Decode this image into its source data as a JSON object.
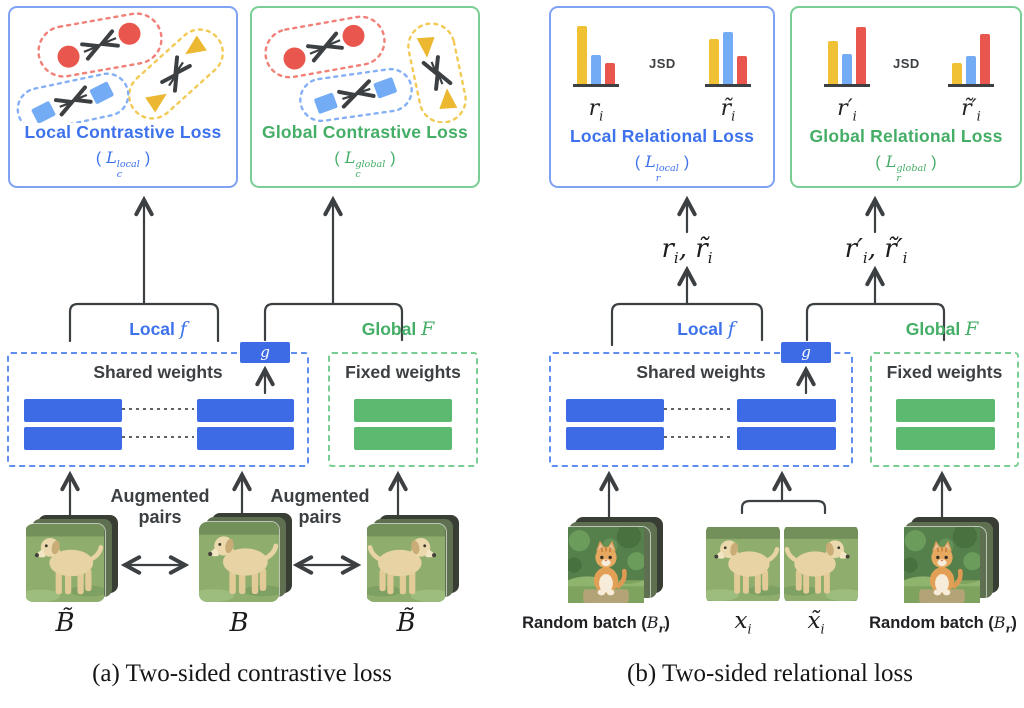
{
  "palette": {
    "blue_text": "#3D72EC",
    "blue_bar": "#3D6BE5",
    "blue_light": "#74ABF5",
    "blue_border": "#7FA3F2",
    "blue_dashed": "#5F8EF0",
    "green_text": "#45AE66",
    "green_bar": "#5BBA70",
    "green_border": "#79CE94",
    "red": "#E9564E",
    "yellow": "#ECB831",
    "hist_yellow": "#F0C135",
    "dark": "#3C4043"
  },
  "panel_a": {
    "local_box": {
      "title": "Local Contrastive Loss",
      "formula": {
        "open": "(",
        "base": "L",
        "sup": "local",
        "sub": "c",
        "close": ")"
      }
    },
    "global_box": {
      "title": "Global Contrastive Loss",
      "formula": {
        "open": "(",
        "base": "L",
        "sup": "global",
        "sub": "c",
        "close": ")"
      }
    },
    "local_encoder": {
      "prefix": "Local ",
      "symbol": "f"
    },
    "global_encoder": {
      "prefix": "Global ",
      "symbol": "F"
    },
    "g_label": "g",
    "shared_weights": "Shared weights",
    "fixed_weights": "Fixed weights",
    "augmented_1": {
      "line1": "Augmented",
      "line2": "pairs"
    },
    "augmented_2": {
      "line1": "Augmented",
      "line2": "pairs"
    },
    "batch_labels": [
      "B̃",
      "B",
      "B̃"
    ],
    "caption": "(a) Two-sided contrastive loss"
  },
  "panel_b": {
    "local_box": {
      "title": "Local Relational Loss",
      "formula": {
        "open": "(",
        "base": "L",
        "sup": "local",
        "sub": "r",
        "close": ")"
      },
      "jsd": "JSD",
      "left_hist": {
        "values": [
          58,
          29,
          21
        ],
        "label": {
          "base": "r",
          "sub": "i"
        }
      },
      "right_hist": {
        "values": [
          45,
          52,
          28
        ],
        "label": {
          "base": "r̃",
          "sub": "i"
        }
      }
    },
    "global_box": {
      "title": "Global Relational Loss",
      "formula": {
        "open": "(",
        "base": "L",
        "sup": "global",
        "sub": "r",
        "close": ")"
      },
      "jsd": "JSD",
      "left_hist": {
        "values": [
          43,
          30,
          57
        ],
        "label": {
          "base": "r′",
          "sub": "i"
        }
      },
      "right_hist": {
        "values": [
          21,
          28,
          50
        ],
        "label": {
          "base": "r̃′",
          "sub": "i"
        }
      }
    },
    "relation_local": {
      "t1": "r",
      "s1": "i",
      "comma": ", ",
      "t2": "r̃",
      "s2": "i"
    },
    "relation_global": {
      "t1": "r′",
      "s1": "i",
      "comma": ", ",
      "t2": "r̃′",
      "s2": "i"
    },
    "local_encoder": {
      "prefix": "Local ",
      "symbol": "f"
    },
    "global_encoder": {
      "prefix": "Global ",
      "symbol": "F"
    },
    "g_label": "g",
    "shared_weights": "Shared weights",
    "fixed_weights": "Fixed weights",
    "random_batch_left": {
      "prefix": "Random batch (",
      "base": "B",
      "sub": "r",
      "suffix": ")"
    },
    "random_batch_right": {
      "prefix": "Random batch (",
      "base": "B",
      "sub": "r",
      "suffix": ")"
    },
    "sample_x": {
      "base": "x",
      "sub": "i"
    },
    "sample_x_tilde": {
      "base": "x̃",
      "sub": "i"
    },
    "caption": "(b) Two-sided relational loss"
  }
}
